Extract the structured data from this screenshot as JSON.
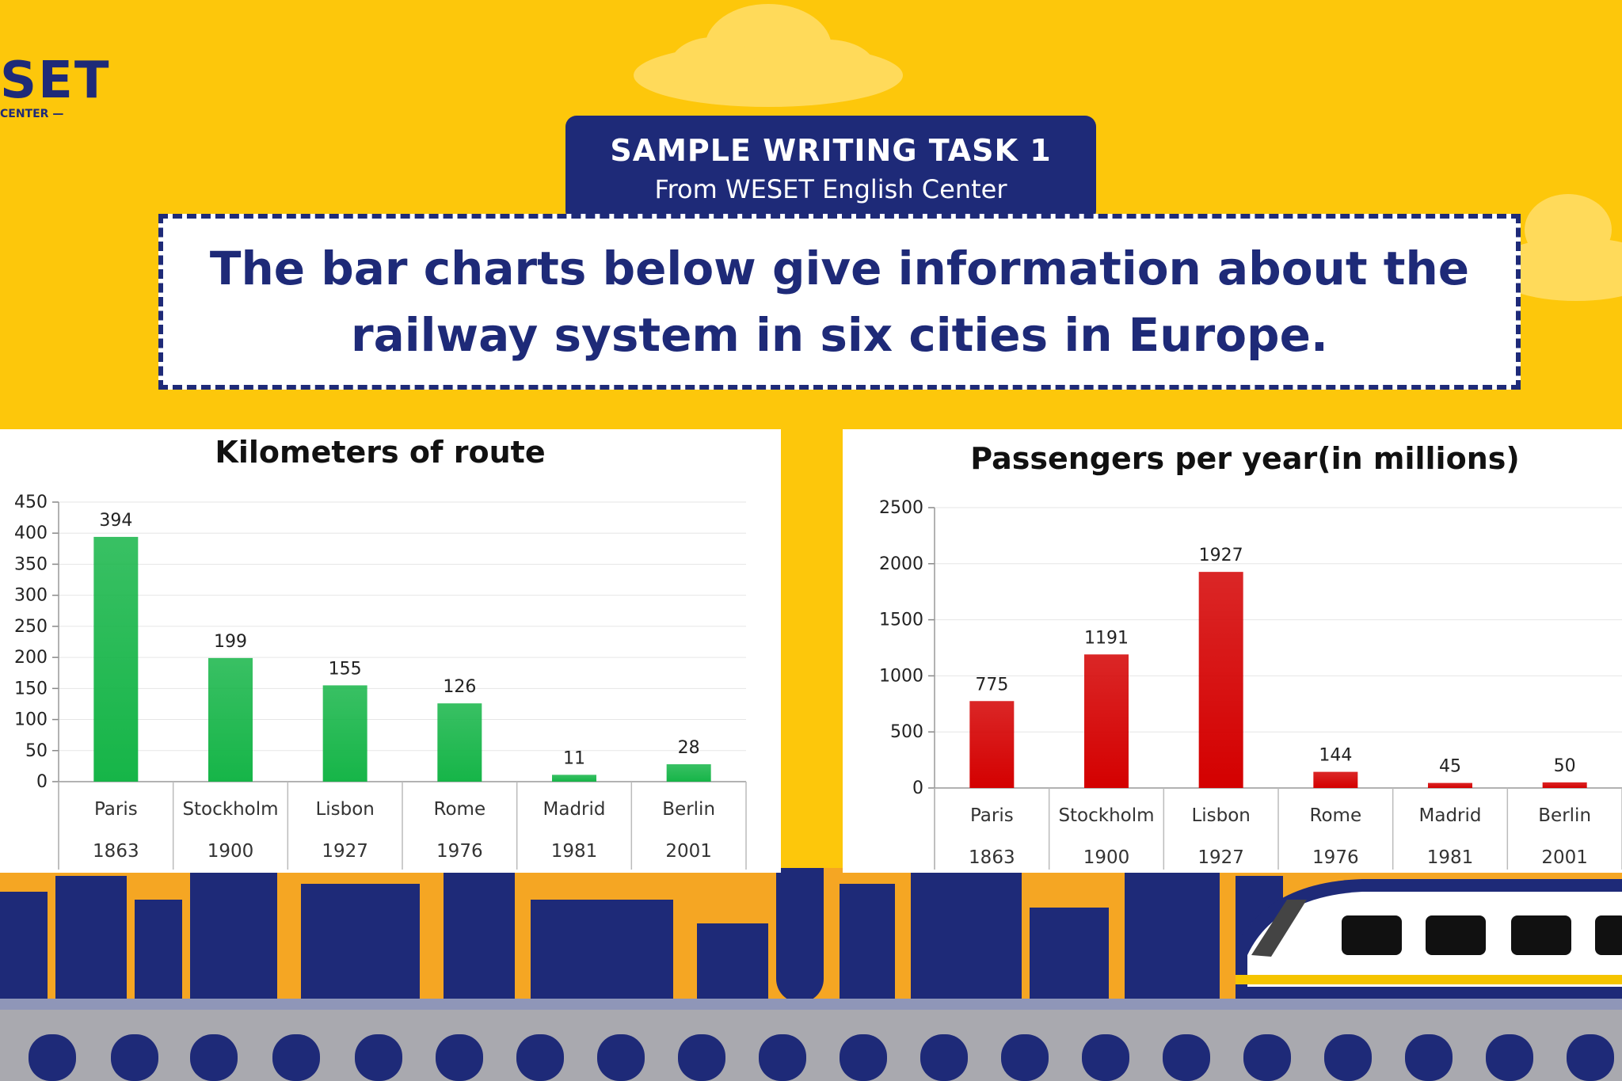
{
  "logo": {
    "text": "SET",
    "subtitle": "CENTER"
  },
  "badge": {
    "title": "SAMPLE WRITING TASK 1",
    "subtitle": "From WESET English Center"
  },
  "task": {
    "text": "The bar charts below give information about the railway system in six cities in Europe."
  },
  "colors": {
    "accent": "#FDC70B",
    "navy": "#1E2A78",
    "green_bar": "#16B548",
    "red_bar": "#D40000"
  },
  "chart_data": [
    {
      "type": "bar",
      "title": "Kilometers of route",
      "categories": [
        "Paris",
        "Stockholm",
        "Lisbon",
        "Rome",
        "Madrid",
        "Berlin"
      ],
      "years": [
        "1863",
        "1900",
        "1927",
        "1976",
        "1981",
        "2001"
      ],
      "values": [
        394,
        199,
        155,
        126,
        11,
        28
      ],
      "yticks": [
        0,
        50,
        100,
        150,
        200,
        250,
        300,
        350,
        400,
        450
      ],
      "ylim": [
        0,
        450
      ],
      "xlabel": "",
      "ylabel": "",
      "bar_color": "#16B548",
      "grid": true
    },
    {
      "type": "bar",
      "title": "Passengers per year(in millions)",
      "categories": [
        "Paris",
        "Stockholm",
        "Lisbon",
        "Rome",
        "Madrid",
        "Berlin"
      ],
      "years": [
        "1863",
        "1900",
        "1927",
        "1976",
        "1981",
        "2001"
      ],
      "values": [
        775,
        1191,
        1927,
        144,
        45,
        50
      ],
      "yticks": [
        0,
        500,
        1000,
        1500,
        2000,
        2500
      ],
      "ylim": [
        0,
        2500
      ],
      "xlabel": "",
      "ylabel": "",
      "bar_color": "#D40000",
      "grid": true
    }
  ]
}
